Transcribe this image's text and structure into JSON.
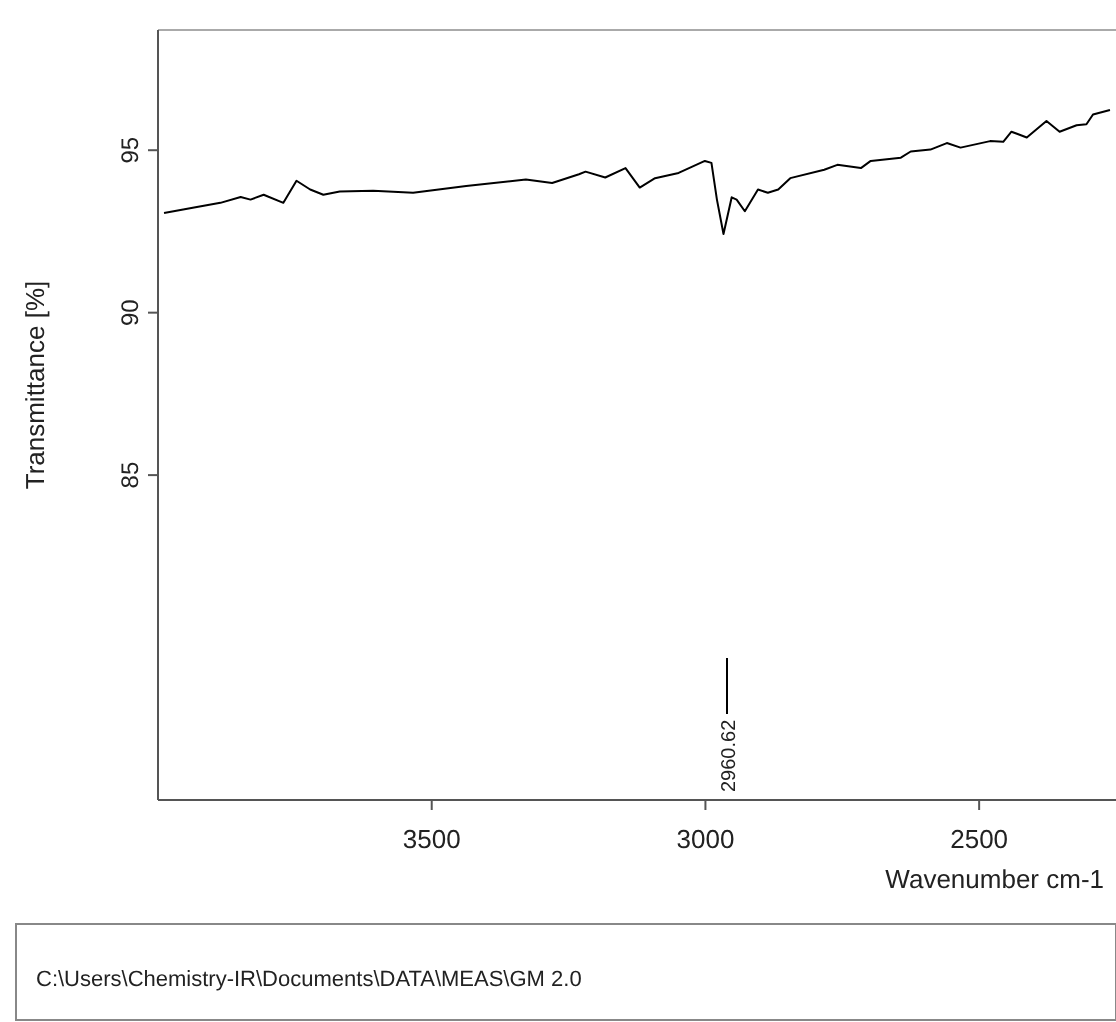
{
  "chart_data": {
    "type": "line",
    "xlabel": "Wavenumber cm-1",
    "ylabel": "Transmittance [%]",
    "xlim": [
      4000,
      2250
    ],
    "xticks": [
      3500,
      3000,
      2500
    ],
    "ylim": [
      75,
      98.7
    ],
    "yticks": [
      95,
      90,
      85
    ],
    "grid": false,
    "x": [
      3989,
      3934,
      3886,
      3849,
      3831,
      3807,
      3771,
      3747,
      3722,
      3698,
      3668,
      3607,
      3534,
      3437,
      3328,
      3280,
      3231,
      3219,
      3183,
      3146,
      3120,
      3092,
      3049,
      3001,
      2989,
      2979,
      2967,
      2952,
      2943,
      2928,
      2904,
      2886,
      2867,
      2845,
      2783,
      2759,
      2716,
      2698,
      2643,
      2625,
      2589,
      2559,
      2534,
      2480,
      2456,
      2441,
      2413,
      2377,
      2353,
      2322,
      2304,
      2292,
      2261
    ],
    "values": [
      93.07,
      93.24,
      93.38,
      93.56,
      93.48,
      93.63,
      93.38,
      94.06,
      93.79,
      93.63,
      93.73,
      93.75,
      93.69,
      93.9,
      94.1,
      93.99,
      94.26,
      94.34,
      94.16,
      94.45,
      93.85,
      94.14,
      94.3,
      94.67,
      94.61,
      93.48,
      92.42,
      93.55,
      93.48,
      93.12,
      93.79,
      93.69,
      93.79,
      94.14,
      94.4,
      94.55,
      94.45,
      94.67,
      94.77,
      94.96,
      95.02,
      95.22,
      95.08,
      95.28,
      95.26,
      95.57,
      95.39,
      95.9,
      95.57,
      95.77,
      95.8,
      96.1,
      96.24
    ],
    "color": "#000000",
    "annotations": [
      {
        "text": "2960.62",
        "x": 2960.62
      },
      "C:\\Users\\Chemistry-IR\\Documents\\DATA\\MEAS\\GM 2.0"
    ]
  }
}
